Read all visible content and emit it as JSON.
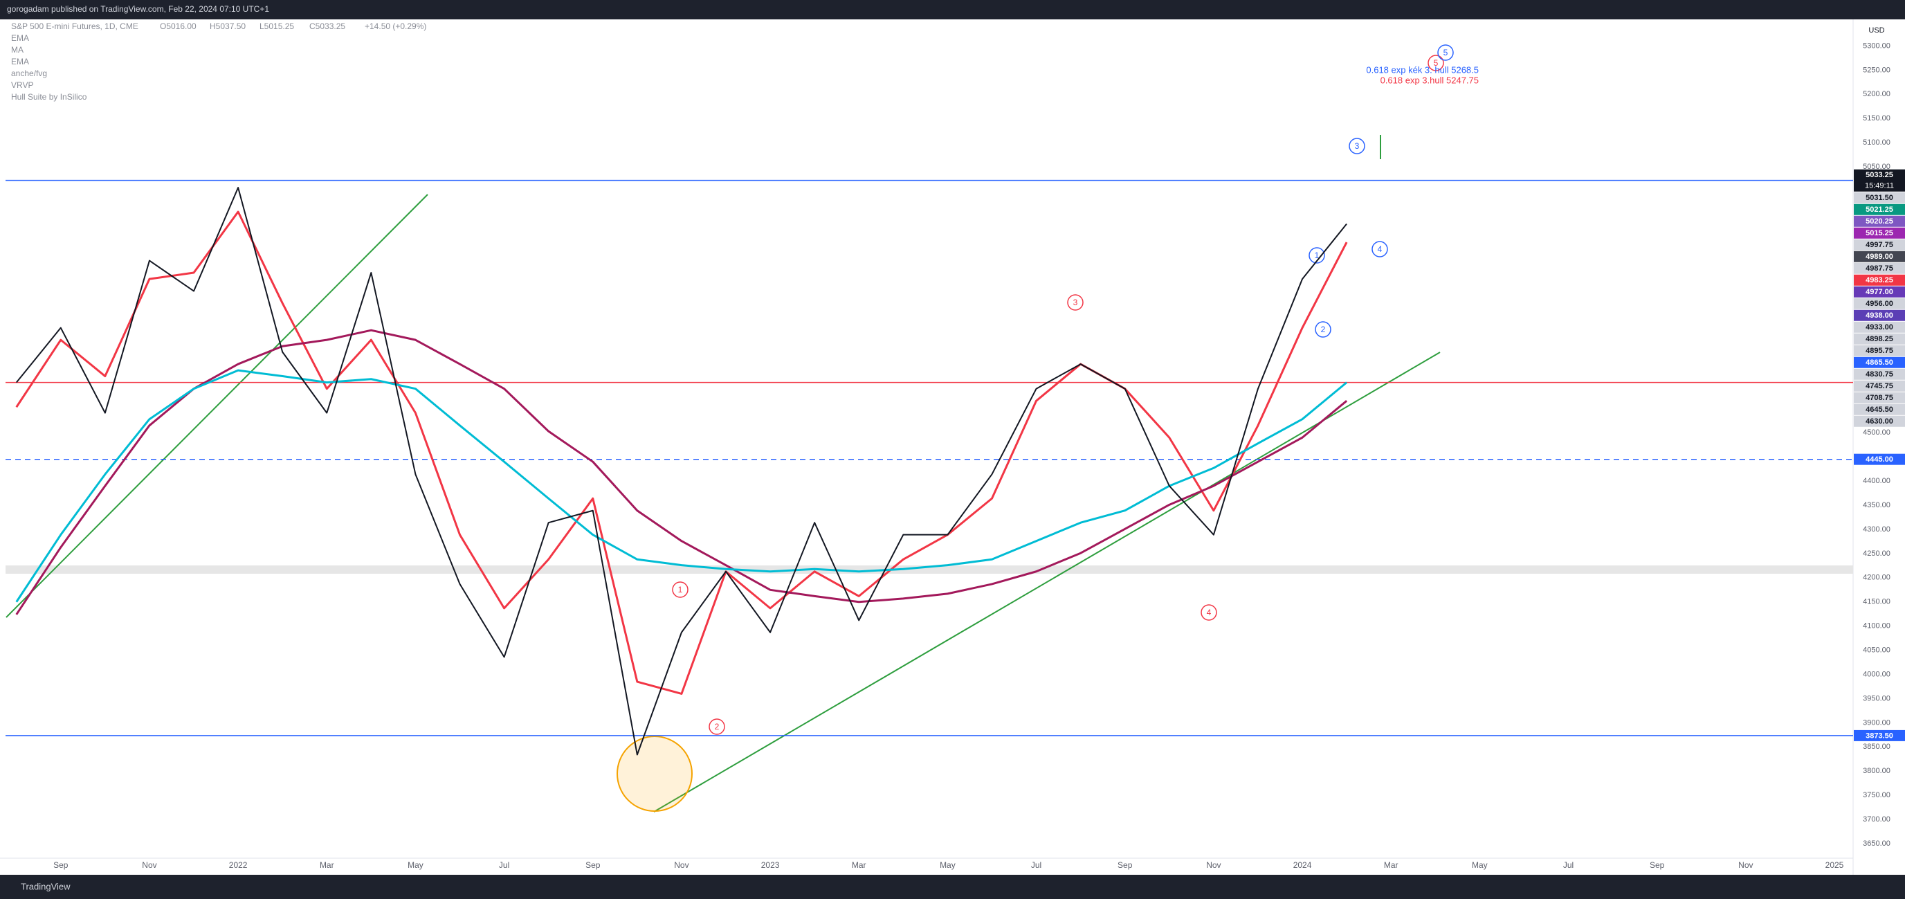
{
  "header": {
    "title": "gorogadam published on TradingView.com, Feb 22, 2024 07:10 UTC+1",
    "footer": "TradingView"
  },
  "chart_data": {
    "type": "line",
    "symbol": "S&P 500 E-mini Futures, 1D, CME",
    "ohlc": [
      "O5016.00",
      "H5037.50",
      "L5015.25",
      "C5033.25",
      "+14.50 (+0.29%)"
    ],
    "indicators": [
      "anche/fvg",
      "VRVP",
      "Hull Suite by InSilico"
    ],
    "currency": "USD",
    "countdown": "15:49:11",
    "categories": [
      null,
      "Sep",
      null,
      "Nov",
      null,
      "2022",
      null,
      "Mar",
      null,
      "May",
      null,
      "Jul",
      null,
      "Sep",
      null,
      "Nov",
      null,
      "2023",
      null,
      "Mar",
      null,
      "May",
      null,
      "Jul",
      null,
      "Sep",
      null,
      "Nov",
      null,
      "2024",
      null,
      "Mar",
      null,
      "May",
      null,
      "Jul",
      null,
      "Sep",
      null,
      "Nov",
      null,
      "2025"
    ],
    "values": [
      4604,
      4717,
      4541,
      4856,
      4793,
      5007,
      4667,
      4541,
      4831,
      4414,
      4187,
      4036,
      4314,
      4339,
      3834,
      4087,
      4213,
      4087,
      4314,
      4112,
      4289,
      4289,
      4414,
      4591,
      4642,
      4591,
      4390,
      4289,
      4591,
      4818,
      4932,
      null,
      null,
      null,
      null,
      null,
      null,
      null,
      null,
      null,
      null,
      null
    ],
    "color": "#131722",
    "series": [
      {
        "name": "EMA",
        "color": "#f23645",
        "values": [
          4553,
          4692,
          4617,
          4818,
          4831,
          4957,
          4768,
          4591,
          4692,
          4541,
          4289,
          4137,
          4238,
          4364,
          3985,
          3960,
          4213,
          4137,
          4213,
          4162,
          4238,
          4289,
          4364,
          4566,
          4642,
          4591,
          4490,
          4339,
          4515,
          4717,
          4894,
          null,
          null,
          null,
          null,
          null,
          null,
          null,
          null,
          null,
          null,
          null
        ]
      },
      {
        "name": "MA",
        "color": "#a3195b",
        "values": [
          4124,
          4263,
          4390,
          4515,
          4591,
          4642,
          4679,
          4692,
          4712,
          4692,
          4642,
          4591,
          4503,
          4440,
          4339,
          4276,
          4226,
          4175,
          4162,
          4150,
          4157,
          4167,
          4187,
          4213,
          4251,
          4301,
          4351,
          4390,
          4440,
          4490,
          4566,
          null,
          null,
          null,
          null,
          null,
          null,
          null,
          null,
          null,
          null,
          null
        ]
      },
      {
        "name": "EMA",
        "color": "#00bcd4",
        "values": [
          4150,
          4289,
          4414,
          4528,
          4591,
          4629,
          4617,
          4604,
          4611,
          4591,
          4515,
          4440,
          4364,
          4289,
          4238,
          4226,
          4218,
          4213,
          4218,
          4213,
          4218,
          4226,
          4238,
          4276,
          4314,
          4339,
          4390,
          4427,
          4478,
          4528,
          4604,
          null,
          null,
          null,
          null,
          null,
          null,
          null,
          null,
          null,
          null,
          null
        ]
      }
    ],
    "ylim": [
      3620,
      5355
    ],
    "yticks": [
      {
        "value": 5300,
        "label": "5300.00"
      },
      {
        "value": 5250,
        "label": "5250.00"
      },
      {
        "value": 5200,
        "label": "5200.00"
      },
      {
        "value": 5150,
        "label": "5150.00"
      },
      {
        "value": 5100,
        "label": "5100.00"
      },
      {
        "value": 5050,
        "label": "5050.00"
      },
      {
        "value": 4500,
        "label": "4500.00"
      },
      {
        "value": 4400,
        "label": "4400.00"
      },
      {
        "value": 4350,
        "label": "4350.00"
      },
      {
        "value": 4300,
        "label": "4300.00"
      },
      {
        "value": 4250,
        "label": "4250.00"
      },
      {
        "value": 4200,
        "label": "4200.00"
      },
      {
        "value": 4150,
        "label": "4150.00"
      },
      {
        "value": 4100,
        "label": "4100.00"
      },
      {
        "value": 4050,
        "label": "4050.00"
      },
      {
        "value": 4000,
        "label": "4000.00"
      },
      {
        "value": 3950,
        "label": "3950.00"
      },
      {
        "value": 3900,
        "label": "3900.00"
      },
      {
        "value": 3850,
        "label": "3850.00"
      },
      {
        "value": 3800,
        "label": "3800.00"
      },
      {
        "value": 3750,
        "label": "3750.00"
      },
      {
        "value": 3700,
        "label": "3700.00"
      },
      {
        "value": 3650,
        "label": "3650.00"
      }
    ],
    "grid": false,
    "lines": [
      {
        "value": 5022,
        "color": "#2962ff"
      },
      {
        "value": 4604,
        "color": "#f23645"
      },
      {
        "value": 4445,
        "color": "#2962ff",
        "style": "dashed"
      },
      {
        "value": 3873.5,
        "color": "#2962ff"
      }
    ],
    "price_labels": [
      {
        "value": 5033.25,
        "color": "#131722"
      },
      {
        "value": 5031.5,
        "label": "5031.50",
        "color": "#d1d4dc"
      },
      {
        "value": 5021.25,
        "color": "#089981"
      },
      {
        "value": 5020.25,
        "color": "#7e57c2"
      },
      {
        "value": 5015.25,
        "color": "#9c27b0"
      },
      {
        "value": 4997.75,
        "color": "#d1d4dc"
      },
      {
        "value": 4989,
        "label": "4989.00",
        "color": "#434651"
      },
      {
        "value": 4987.75,
        "color": "#d1d4dc"
      },
      {
        "value": 4983.25,
        "color": "#f23645"
      },
      {
        "value": 4977,
        "label": "4977.00",
        "color": "#673ab7"
      },
      {
        "value": 4956,
        "label": "4956.00",
        "color": "#d1d4dc"
      },
      {
        "value": 4938,
        "label": "4938.00",
        "color": "#5b3fb5"
      },
      {
        "value": 4933,
        "label": "4933.00",
        "color": "#d1d4dc"
      },
      {
        "value": 4898.25,
        "color": "#d1d4dc"
      },
      {
        "value": 4895.75,
        "color": "#d1d4dc"
      },
      {
        "value": 4865.5,
        "label": "4865.50",
        "color": "#2962ff"
      },
      {
        "value": 4830.75,
        "color": "#d1d4dc"
      },
      {
        "value": 4745.75,
        "color": "#d1d4dc"
      },
      {
        "value": 4708.75,
        "color": "#d1d4dc"
      },
      {
        "value": 4645.5,
        "label": "4645.50",
        "color": "#d1d4dc"
      },
      {
        "value": 4630,
        "label": "4630.00",
        "color": "#d1d4dc"
      },
      {
        "value": 4445,
        "label": "4445.00",
        "color": "#2962ff"
      },
      {
        "value": 3873.5,
        "label": "3873.50",
        "color": "#2962ff"
      }
    ],
    "annotations": {
      "waves_red": [
        "1",
        "2",
        "3",
        "4",
        "5"
      ],
      "waves_blue": [
        "1",
        "2",
        "3",
        "4",
        "5"
      ],
      "fib_blue": "0.618 exp kék 3. hull 5268.5",
      "fib_red": "0.618 exp 3.hull 5247.75"
    }
  }
}
